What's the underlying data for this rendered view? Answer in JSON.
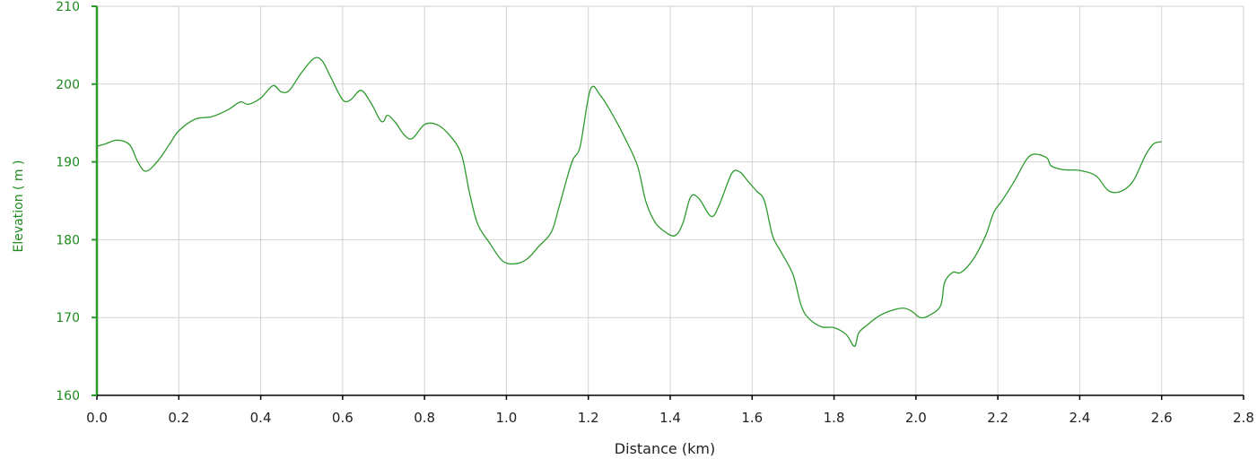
{
  "chart_data": {
    "type": "line",
    "title": "",
    "xlabel": "Distance (km)",
    "ylabel": "Elevation ( m )",
    "xlim": [
      0,
      2.8
    ],
    "ylim": [
      160,
      210
    ],
    "x_ticks": [
      "0.0",
      "0.2",
      "0.4",
      "0.6",
      "0.8",
      "1.0",
      "1.2",
      "1.4",
      "1.6",
      "1.8",
      "2.0",
      "2.2",
      "2.4",
      "2.6",
      "2.8"
    ],
    "y_ticks": [
      "160",
      "170",
      "180",
      "190",
      "200",
      "210"
    ],
    "grid": true,
    "legend": "none",
    "colors": {
      "line": "#2e9a2e",
      "y_axis": "#2e9a2e",
      "y_text": "#1f8a1f",
      "x_axis": "#000000",
      "grid": "#d2d2d2"
    },
    "series": [
      {
        "name": "",
        "x": [
          0.0,
          0.02,
          0.05,
          0.08,
          0.1,
          0.12,
          0.15,
          0.18,
          0.2,
          0.24,
          0.28,
          0.32,
          0.35,
          0.37,
          0.4,
          0.43,
          0.45,
          0.47,
          0.5,
          0.53,
          0.55,
          0.57,
          0.6,
          0.62,
          0.645,
          0.67,
          0.69,
          0.7,
          0.71,
          0.73,
          0.75,
          0.77,
          0.8,
          0.83,
          0.86,
          0.89,
          0.91,
          0.93,
          0.96,
          0.99,
          1.02,
          1.05,
          1.08,
          1.11,
          1.13,
          1.16,
          1.18,
          1.205,
          1.23,
          1.26,
          1.29,
          1.32,
          1.34,
          1.36,
          1.38,
          1.41,
          1.43,
          1.45,
          1.47,
          1.5,
          1.52,
          1.55,
          1.57,
          1.59,
          1.61,
          1.63,
          1.65,
          1.67,
          1.7,
          1.72,
          1.74,
          1.77,
          1.8,
          1.83,
          1.85,
          1.86,
          1.88,
          1.91,
          1.94,
          1.97,
          1.99,
          2.01,
          2.03,
          2.06,
          2.07,
          2.09,
          2.11,
          2.14,
          2.17,
          2.19,
          2.21,
          2.24,
          2.27,
          2.29,
          2.32,
          2.33,
          2.36,
          2.4,
          2.44,
          2.47,
          2.5,
          2.53,
          2.56,
          2.58,
          2.6
        ],
        "y": [
          192.0,
          192.3,
          192.8,
          192.2,
          190.0,
          188.8,
          190.2,
          192.5,
          194.0,
          195.5,
          195.8,
          196.7,
          197.7,
          197.4,
          198.2,
          199.8,
          199.0,
          199.2,
          201.5,
          203.3,
          203.0,
          201.0,
          198.0,
          198.0,
          199.2,
          197.5,
          195.5,
          195.2,
          196.0,
          195.0,
          193.5,
          193.0,
          194.8,
          194.8,
          193.5,
          191.0,
          186.0,
          182.0,
          179.5,
          177.3,
          176.9,
          177.5,
          179.2,
          181.0,
          184.5,
          190.0,
          192.0,
          199.3,
          198.5,
          196.0,
          193.0,
          189.5,
          185.0,
          182.5,
          181.3,
          180.5,
          182.0,
          185.5,
          185.3,
          183.0,
          184.5,
          188.5,
          188.7,
          187.5,
          186.3,
          185.0,
          180.5,
          178.5,
          175.5,
          171.5,
          169.8,
          168.8,
          168.7,
          167.8,
          166.3,
          168.0,
          169.0,
          170.2,
          170.9,
          171.2,
          170.8,
          170.0,
          170.2,
          171.5,
          174.5,
          175.8,
          175.8,
          177.5,
          180.5,
          183.5,
          185.0,
          187.5,
          190.3,
          191.0,
          190.5,
          189.5,
          189.0,
          188.9,
          188.2,
          186.3,
          186.2,
          187.5,
          190.8,
          192.3,
          192.6
        ]
      }
    ]
  }
}
